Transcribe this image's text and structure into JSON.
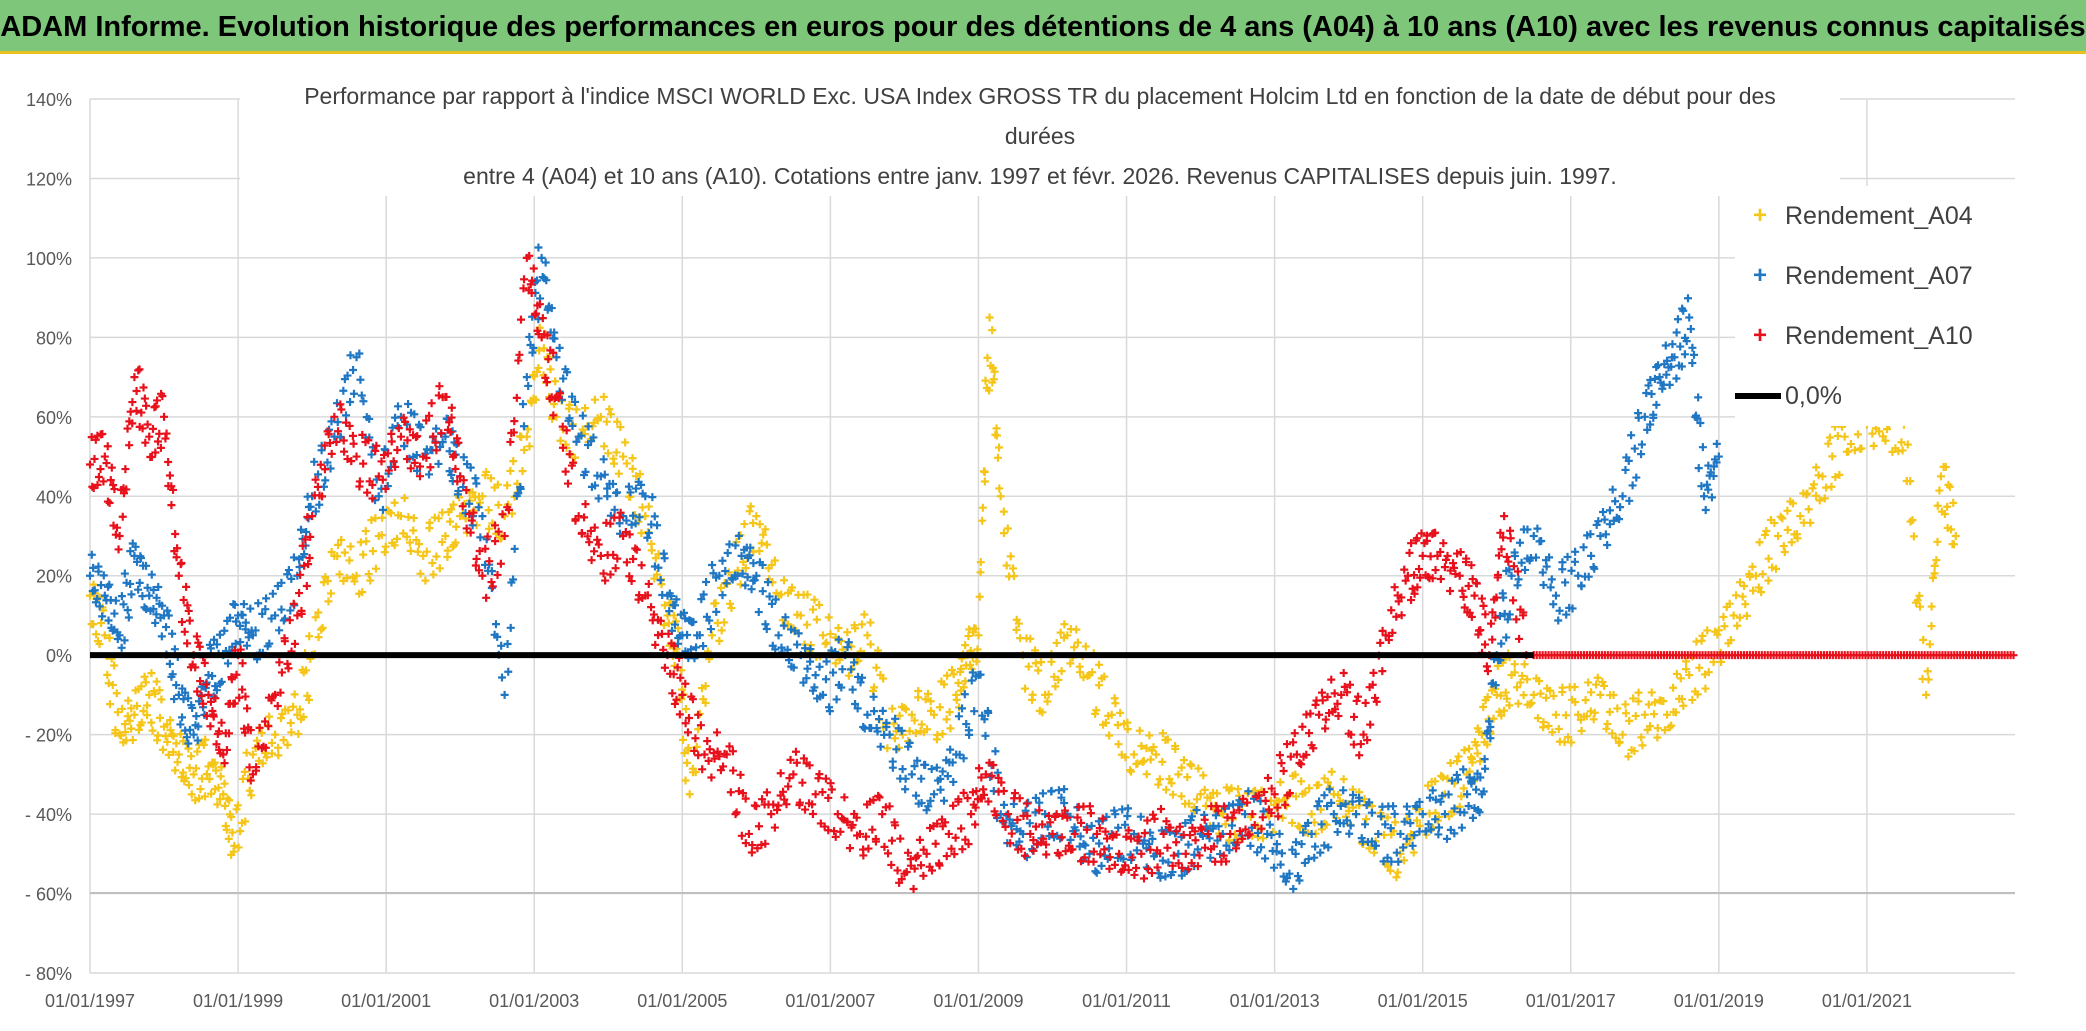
{
  "banner_title": "ADAM Informe. Evolution historique des performances en euros pour des détentions de 4 ans (A04) à 10 ans (A10) avec les revenus connus capitalisés",
  "colors": {
    "banner_bg": "#7dc67a",
    "banner_edge": "#e8c020",
    "a04": "#f5c518",
    "a07": "#1f77c4",
    "a10": "#e8111b",
    "zero": "#000000"
  },
  "chart_data": {
    "type": "scatter",
    "title_lines": [
      "Performance par rapport à l'indice MSCI WORLD Exc. USA Index GROSS TR  du placement Holcim Ltd en fonction de la date de début pour des",
      "durées",
      "entre 4 (A04) et 10 ans (A10). Cotations entre janv. 1997 et févr. 2026. Revenus CAPITALISES depuis juin. 1997."
    ],
    "ylim": [
      -80,
      140
    ],
    "y_ticks": [
      140,
      120,
      100,
      80,
      60,
      40,
      20,
      0,
      -20,
      -40,
      -60,
      -80
    ],
    "y_tick_labels": [
      "140%",
      "120%",
      "100%",
      "80%",
      "60%",
      "40%",
      "20%",
      "0%",
      "- 20%",
      "- 40%",
      "- 60%",
      "- 80%"
    ],
    "xlim": [
      1997.0,
      2023.0
    ],
    "x_ticks": [
      1997,
      1999,
      2001,
      2003,
      2005,
      2007,
      2009,
      2011,
      2013,
      2015,
      2017,
      2019,
      2021
    ],
    "x_tick_labels": [
      "01/01/1997",
      "01/01/1999",
      "01/01/2001",
      "01/01/2003",
      "01/01/2005",
      "01/01/2007",
      "01/01/2009",
      "01/01/2011",
      "01/01/2013",
      "01/01/2015",
      "01/01/2017",
      "01/01/2019",
      "01/01/2021"
    ],
    "zero_line": {
      "label": "0,0%",
      "value": 0
    },
    "series": [
      {
        "name": "Rendement_A04",
        "color": "#f5c518",
        "x": [
          1997.0,
          1997.2,
          1997.4,
          1997.6,
          1997.8,
          1998.0,
          1998.2,
          1998.4,
          1998.6,
          1998.8,
          1998.95,
          1999.2,
          1999.5,
          1999.8,
          2000.0,
          2000.3,
          2000.6,
          2000.9,
          2001.2,
          2001.5,
          2001.8,
          2002.0,
          2002.3,
          2002.6,
          2002.9,
          2003.1,
          2003.3,
          2003.6,
          2003.9,
          2004.2,
          2004.5,
          2004.8,
          2004.95,
          2005.1,
          2005.4,
          2005.7,
          2006.0,
          2006.3,
          2006.6,
          2006.9,
          2007.2,
          2007.5,
          2007.8,
          2008.1,
          2008.4,
          2008.7,
          2008.85,
          2009.0,
          2009.15,
          2009.3,
          2009.6,
          2009.9,
          2010.2,
          2010.5,
          2010.8,
          2011.1,
          2011.4,
          2011.7,
          2012.0,
          2012.3,
          2012.6,
          2012.9,
          2013.2,
          2013.5,
          2013.8,
          2014.1,
          2014.4,
          2014.7,
          2015.0,
          2015.3,
          2015.6,
          2015.8,
          2016.0,
          2016.2,
          2016.5,
          2016.8,
          2017.1,
          2017.4,
          2017.7,
          2018.0,
          2018.3,
          2018.6,
          2018.9,
          2019.2,
          2019.5,
          2019.8,
          2020.1,
          2020.4,
          2020.7,
          2021.0,
          2021.3,
          2021.5,
          2021.8,
          2022.0,
          2022.2
        ],
        "y": [
          15,
          5,
          -20,
          -15,
          -10,
          -18,
          -25,
          -30,
          -28,
          -35,
          -48,
          -25,
          -20,
          -15,
          0,
          25,
          20,
          30,
          35,
          25,
          30,
          35,
          40,
          35,
          55,
          80,
          60,
          55,
          60,
          50,
          35,
          10,
          0,
          -35,
          5,
          20,
          35,
          15,
          10,
          5,
          0,
          5,
          -20,
          -15,
          -15,
          -10,
          0,
          5,
          85,
          40,
          0,
          -10,
          5,
          -5,
          -15,
          -25,
          -25,
          -30,
          -35,
          -40,
          -40,
          -40,
          -35,
          -40,
          -35,
          -40,
          -45,
          -50,
          -40,
          -35,
          -30,
          -20,
          -10,
          -5,
          -10,
          -15,
          -15,
          -10,
          -20,
          -15,
          -15,
          -5,
          0,
          10,
          20,
          30,
          35,
          45,
          55,
          58,
          58,
          58,
          -10,
          45,
          30
        ]
      },
      {
        "name": "Rendement_A07",
        "color": "#1f77c4",
        "x": [
          1997.0,
          1997.2,
          1997.4,
          1997.6,
          1997.8,
          1998.0,
          1998.2,
          1998.4,
          1998.6,
          1998.8,
          1999.0,
          1999.2,
          1999.5,
          1999.8,
          2000.0,
          2000.3,
          2000.6,
          2000.9,
          2001.2,
          2001.5,
          2001.8,
          2002.0,
          2002.3,
          2002.6,
          2002.9,
          2003.1,
          2003.3,
          2003.6,
          2003.9,
          2004.2,
          2004.5,
          2004.8,
          2005.0,
          2005.2,
          2005.5,
          2005.8,
          2006.0,
          2006.3,
          2006.6,
          2006.9,
          2007.2,
          2007.5,
          2007.8,
          2008.1,
          2008.4,
          2008.7,
          2009.0,
          2009.3,
          2009.6,
          2009.9,
          2010.2,
          2010.5,
          2010.8,
          2011.1,
          2011.4,
          2011.7,
          2012.0,
          2012.3,
          2012.6,
          2012.9,
          2013.2,
          2013.5,
          2013.8,
          2014.1,
          2014.4,
          2014.7,
          2015.0,
          2015.3,
          2015.6,
          2015.8,
          2016.0,
          2016.2,
          2016.5,
          2016.8,
          2017.1,
          2017.4,
          2017.7,
          2018.0,
          2018.2,
          2018.4,
          2018.6,
          2018.8,
          2019.0
        ],
        "y": [
          20,
          15,
          5,
          25,
          15,
          10,
          -10,
          -20,
          -5,
          0,
          10,
          5,
          10,
          20,
          40,
          55,
          75,
          40,
          60,
          50,
          55,
          45,
          35,
          -10,
          70,
          100,
          75,
          55,
          45,
          35,
          40,
          15,
          5,
          5,
          20,
          25,
          20,
          5,
          0,
          -10,
          0,
          -15,
          -20,
          -30,
          -35,
          -25,
          -5,
          -40,
          -45,
          -40,
          -40,
          -50,
          -45,
          -45,
          -50,
          -50,
          -45,
          -45,
          -40,
          -45,
          -55,
          -45,
          -40,
          -40,
          -45,
          -45,
          -40,
          -40,
          -35,
          -35,
          0,
          20,
          30,
          15,
          20,
          30,
          40,
          60,
          70,
          75,
          85,
          40,
          50
        ]
      },
      {
        "name": "Rendement_A10",
        "color": "#e8111b",
        "x": [
          1997.0,
          1997.2,
          1997.4,
          1997.6,
          1997.8,
          1998.0,
          1998.2,
          1998.4,
          1998.6,
          1998.8,
          1999.0,
          1999.2,
          1999.5,
          1999.8,
          2000.0,
          2000.3,
          2000.6,
          2000.9,
          2001.2,
          2001.5,
          2001.8,
          2002.0,
          2002.3,
          2002.6,
          2002.9,
          2003.1,
          2003.3,
          2003.6,
          2003.9,
          2004.2,
          2004.5,
          2004.8,
          2005.0,
          2005.3,
          2005.6,
          2005.9,
          2006.2,
          2006.5,
          2006.8,
          2007.1,
          2007.4,
          2007.7,
          2008.0,
          2008.3,
          2008.6,
          2008.9,
          2009.1,
          2009.4,
          2009.7,
          2010.0,
          2010.3,
          2010.6,
          2010.9,
          2011.2,
          2011.5,
          2011.8,
          2012.1,
          2012.4,
          2012.7,
          2013.0,
          2013.3,
          2013.6,
          2013.9,
          2014.2,
          2014.5,
          2014.8,
          2015.0,
          2015.2,
          2015.5,
          2015.7,
          2015.9,
          2016.1,
          2016.4
        ],
        "y": [
          48,
          50,
          30,
          70,
          55,
          60,
          20,
          0,
          -10,
          -25,
          0,
          -30,
          -10,
          10,
          35,
          60,
          50,
          45,
          55,
          50,
          65,
          45,
          20,
          30,
          100,
          80,
          65,
          35,
          25,
          30,
          15,
          0,
          -10,
          -25,
          -25,
          -45,
          -40,
          -30,
          -35,
          -40,
          -45,
          -40,
          -55,
          -50,
          -45,
          -40,
          -30,
          -40,
          -45,
          -45,
          -45,
          -45,
          -50,
          -50,
          -45,
          -50,
          -45,
          -45,
          -40,
          -35,
          -25,
          -15,
          -10,
          -20,
          5,
          20,
          25,
          25,
          20,
          15,
          0,
          35,
          0
        ]
      }
    ]
  }
}
